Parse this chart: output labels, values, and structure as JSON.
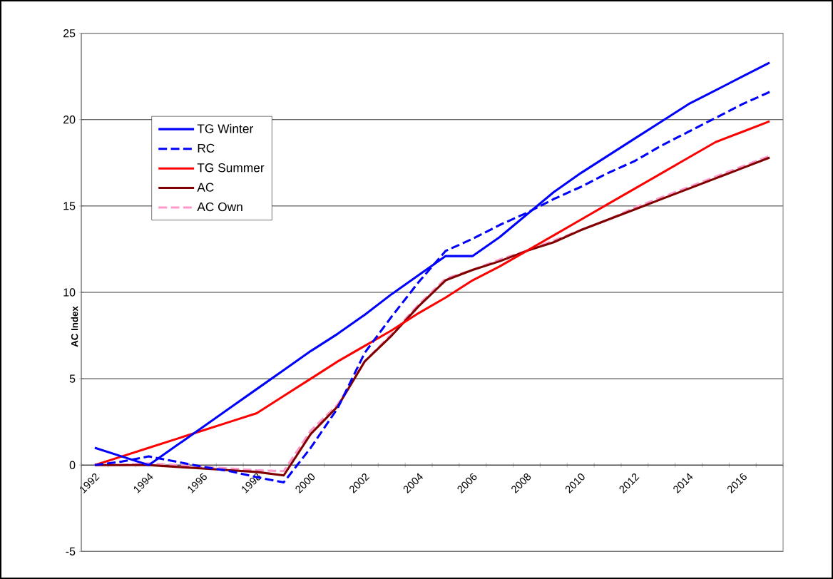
{
  "chart_data": {
    "type": "line",
    "ylabel": "AC Index",
    "categories": [
      "1992",
      null,
      "1994",
      null,
      "1996",
      null,
      "1998",
      null,
      "2000",
      null,
      "2002",
      null,
      "2004",
      null,
      "2006",
      null,
      "2008",
      null,
      "2010",
      null,
      "2012",
      null,
      "2014",
      null,
      "2016",
      null
    ],
    "series": [
      {
        "name": "TG Winter",
        "color": "#0000ff",
        "line_style": "solid",
        "values": [
          1.0,
          0.5,
          0.0,
          1.1,
          2.2,
          3.3,
          4.4,
          5.5,
          6.6,
          7.6,
          8.7,
          9.9,
          11.0,
          12.1,
          12.1,
          13.2,
          14.5,
          15.8,
          16.9,
          17.9,
          18.9,
          19.9,
          20.9,
          21.7,
          22.5,
          23.3
        ]
      },
      {
        "name": "RC",
        "color": "#0000ff",
        "line_style": "dashed",
        "values": [
          0.0,
          0.2,
          0.5,
          0.2,
          -0.1,
          -0.35,
          -0.7,
          -1.0,
          1.0,
          3.3,
          6.5,
          8.6,
          10.6,
          12.4,
          13.1,
          13.9,
          14.6,
          15.4,
          16.1,
          16.9,
          17.6,
          18.5,
          19.3,
          20.1,
          20.9,
          21.6
        ]
      },
      {
        "name": "TG Summer",
        "color": "#ff0000",
        "line_style": "solid",
        "values": [
          0.0,
          0.5,
          1.0,
          1.5,
          2.0,
          2.5,
          3.0,
          4.0,
          5.0,
          6.0,
          6.9,
          7.8,
          8.8,
          9.7,
          10.7,
          11.5,
          12.4,
          13.3,
          14.2,
          15.1,
          16.0,
          16.9,
          17.8,
          18.7,
          19.3,
          19.9
        ]
      },
      {
        "name": "AC",
        "color": "#800000",
        "line_style": "solid",
        "values": [
          0.0,
          0.0,
          0.0,
          -0.1,
          -0.2,
          -0.3,
          -0.4,
          -0.6,
          1.8,
          3.4,
          6.0,
          7.5,
          9.2,
          10.7,
          11.3,
          11.8,
          12.4,
          12.9,
          13.6,
          14.2,
          14.8,
          15.4,
          16.0,
          16.6,
          17.2,
          17.8
        ]
      },
      {
        "name": "AC Own",
        "color": "#ff99cc",
        "line_style": "dashed",
        "values": [
          0.0,
          0.0,
          0.1,
          0.0,
          -0.1,
          -0.2,
          -0.3,
          -0.35,
          2.0,
          3.5,
          6.0,
          7.6,
          9.3,
          10.8,
          11.3,
          11.9,
          12.4,
          13.0,
          13.6,
          14.2,
          14.9,
          15.5,
          16.1,
          16.7,
          17.3,
          17.9
        ]
      }
    ],
    "ylim": [
      -5,
      25
    ],
    "yticks": [
      -5,
      0,
      5,
      10,
      15,
      20,
      25
    ],
    "grid": "y",
    "legend": "top left",
    "marker": "none"
  }
}
